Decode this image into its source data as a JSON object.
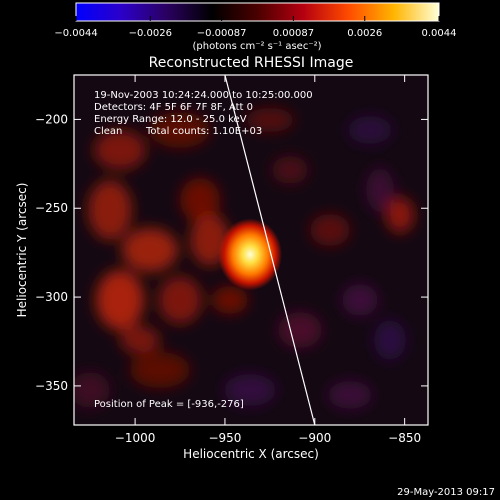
{
  "chart_data": [
    {
      "type": "heatmap",
      "title": "Reconstructed RHESSI Image",
      "annotations": [
        "19-Nov-2003 10:24:24.000 to 10:25:00.000",
        "Detectors: 4F 5F 6F 7F 8F, Att 0",
        "Energy Range: 12.0 - 25.0 keV",
        "Clean",
        "Total counts: 1.10E+03"
      ],
      "peak_label": "Position of Peak = [-936,-276]",
      "peak": {
        "x": -936,
        "y": -276
      },
      "xlabel": "Heliocentric X (arcsec)",
      "ylabel": "Heliocentric Y (arcsec)",
      "xlim": [
        -1034,
        -837
      ],
      "ylim": [
        -372,
        -175
      ],
      "xticks": [
        {
          "v": -1000,
          "label": "−1000"
        },
        {
          "v": -950,
          "label": "−950"
        },
        {
          "v": -900,
          "label": "−900"
        },
        {
          "v": -850,
          "label": "−850"
        }
      ],
      "yticks": [
        {
          "v": -200,
          "label": "−200"
        },
        {
          "v": -250,
          "label": "−250"
        },
        {
          "v": -300,
          "label": "−300"
        },
        {
          "v": -350,
          "label": "−350"
        }
      ],
      "limb_line": [
        [
          -950,
          -175
        ],
        [
          -900,
          -372
        ]
      ],
      "footer": "29-May-2013 09:17"
    },
    {
      "type": "colorbar",
      "unit_label": "(photons cm⁻² s⁻¹ asec⁻²)",
      "range": [
        -0.0044,
        0.0044
      ],
      "ticks": [
        {
          "v": -0.0044,
          "label": "−0.0044"
        },
        {
          "v": -0.0026,
          "label": "−0.0026"
        },
        {
          "v": -0.00087,
          "label": "−0.00087"
        },
        {
          "v": 0.00087,
          "label": "0.00087"
        },
        {
          "v": 0.0026,
          "label": "0.0026"
        },
        {
          "v": 0.0044,
          "label": "0.0044"
        }
      ],
      "colormap": [
        "#0000ff",
        "#2c00c8",
        "#2a0060",
        "#000000",
        "#4a0000",
        "#b40010",
        "#ff4a00",
        "#ffb400",
        "#ffffd8"
      ]
    }
  ]
}
